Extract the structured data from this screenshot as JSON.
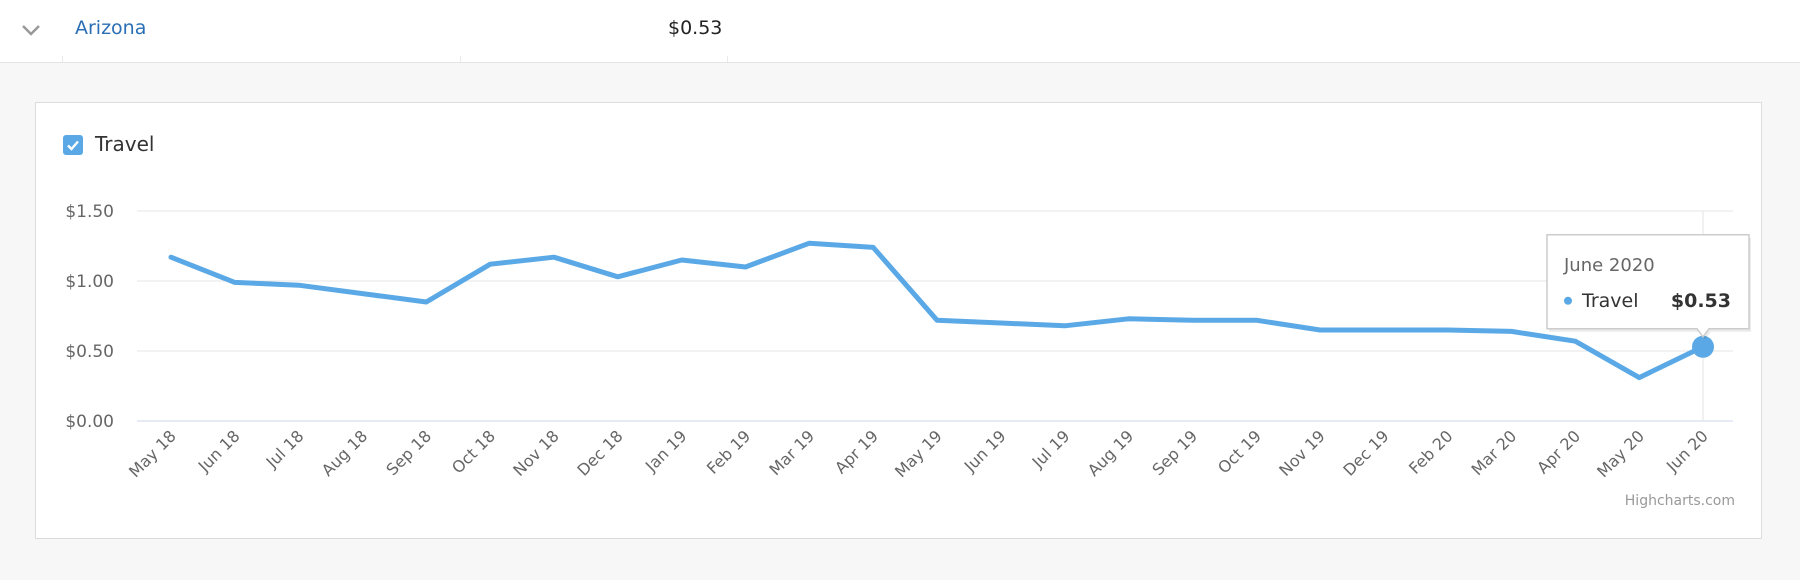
{
  "row": {
    "state": "Arizona",
    "value": "$0.53"
  },
  "legend": {
    "label": "Travel",
    "checked": true
  },
  "credits": "Highcharts.com",
  "tooltip": {
    "title": "June 2020",
    "series": "Travel",
    "value": "$0.53"
  },
  "colors": {
    "series": "#5aa9e6",
    "link": "#2a6fb5"
  },
  "chart_data": {
    "type": "line",
    "title": "",
    "xlabel": "",
    "ylabel": "",
    "ylim": [
      0,
      1.5
    ],
    "yticks": [
      "$0.00",
      "$0.50",
      "$1.00",
      "$1.50"
    ],
    "ytick_values": [
      0,
      0.5,
      1.0,
      1.5
    ],
    "grid": true,
    "legend": "top-left",
    "categories": [
      "May 18",
      "Jun 18",
      "Jul 18",
      "Aug 18",
      "Sep 18",
      "Oct 18",
      "Nov 18",
      "Dec 18",
      "Jan 19",
      "Feb 19",
      "Mar 19",
      "Apr 19",
      "May 19",
      "Jun 19",
      "Jul 19",
      "Aug 19",
      "Sep 19",
      "Oct 19",
      "Nov 19",
      "Dec 19",
      "Feb 20",
      "Mar 20",
      "Apr 20",
      "May 20",
      "Jun 20"
    ],
    "series": [
      {
        "name": "Travel",
        "values": [
          1.17,
          0.99,
          0.97,
          0.91,
          0.85,
          1.12,
          1.17,
          1.03,
          1.15,
          1.1,
          1.27,
          1.24,
          0.72,
          0.7,
          0.68,
          0.73,
          0.72,
          0.72,
          0.65,
          0.65,
          0.65,
          0.64,
          0.57,
          0.31,
          0.53
        ]
      }
    ],
    "highlighted_index": 24
  }
}
